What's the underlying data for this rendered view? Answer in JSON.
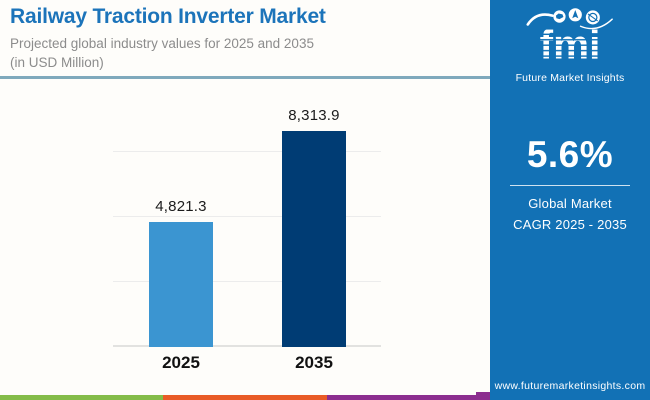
{
  "header": {
    "title": "Railway Traction Inverter Market",
    "subtitle_line1": "Projected global industry values for 2025 and 2035",
    "subtitle_line2": "(in USD Million)"
  },
  "chart_data": {
    "type": "bar",
    "title": "Railway Traction Inverter Market",
    "subtitle": "Projected global industry values for 2025 and 2035 (in USD Million)",
    "categories": [
      "2025",
      "2035"
    ],
    "values": [
      4821.3,
      8313.9
    ],
    "value_labels": [
      "4,821.3",
      "8,313.9"
    ],
    "unit": "USD Million",
    "xlabel": "",
    "ylabel": "",
    "ylim": [
      0,
      10000
    ],
    "gridline_step": 2500,
    "grid": true,
    "legend": false,
    "bar_colors": [
      "#3B95D1",
      "#003C74"
    ]
  },
  "sidebar": {
    "logo": {
      "text": "fmi",
      "tagline": "Future Market Insights"
    },
    "cagr_value": "5.6%",
    "cagr_label_line1": "Global Market",
    "cagr_label_line2": "CAGR 2025 - 2035",
    "website": "www.futuremarketinsights.com"
  },
  "colors": {
    "title_blue": "#1C74BA",
    "subtitle_gray": "#8C8C8C",
    "divider": "#7FA9BC",
    "panel_blue": "#1271B5",
    "bar_2025": "#3B95D1",
    "bar_2035": "#003C74",
    "strip_green": "#84BC49",
    "strip_orange": "#E95B26",
    "strip_purple": "#8C2E8F"
  }
}
